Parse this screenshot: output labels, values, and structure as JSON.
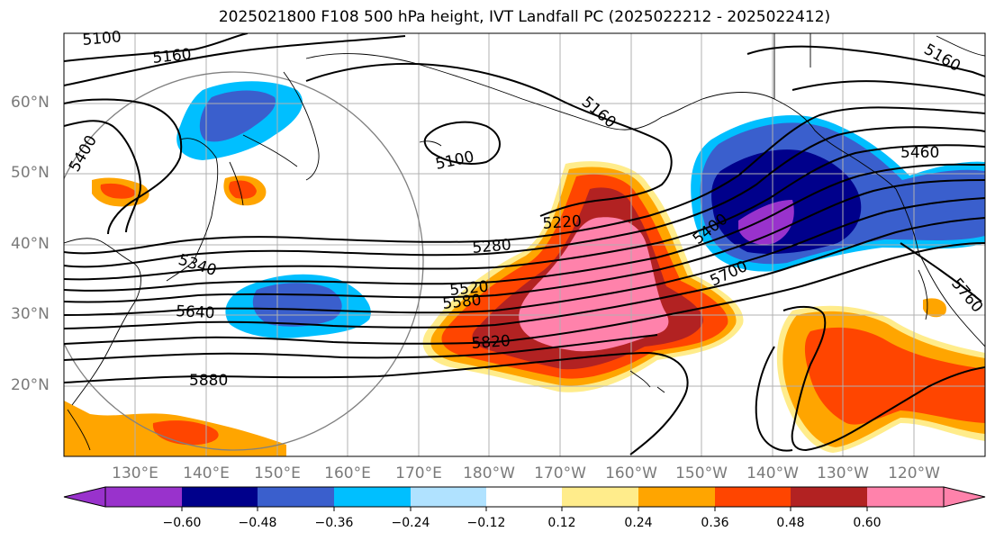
{
  "title": "2025021800 F108 500 hPa height, IVT Landfall PC (2025022212 - 2025022412)",
  "lat_labels": [
    "60°N",
    "50°N",
    "40°N",
    "30°N",
    "20°N"
  ],
  "lon_labels": [
    "130°E",
    "140°E",
    "150°E",
    "160°E",
    "170°E",
    "180°W",
    "170°W",
    "160°W",
    "150°W",
    "140°W",
    "130°W",
    "120°W"
  ],
  "contour_labels": [
    "5100",
    "5160",
    "5400",
    "5100",
    "5160",
    "5160",
    "5460",
    "5220",
    "5280",
    "5340",
    "5400",
    "5700",
    "5520",
    "5580",
    "5640",
    "5820",
    "5880",
    "5760"
  ],
  "colorbar": {
    "tick_labels": [
      "−0.60",
      "−0.48",
      "−0.36",
      "−0.24",
      "−0.12",
      "0.12",
      "0.24",
      "0.36",
      "0.48",
      "0.60"
    ],
    "colors": [
      "#9932cc",
      "#00008b",
      "#3a5fcd",
      "#00bfff",
      "#b0e2ff",
      "#ffffff",
      "#ffec8b",
      "#ffa500",
      "#ff4500",
      "#b22222",
      "#ff82ab"
    ]
  },
  "colors": {
    "contour": "#000000",
    "coastline": "#000000",
    "grid": "#b0b0b0",
    "circle": "#808080"
  }
}
